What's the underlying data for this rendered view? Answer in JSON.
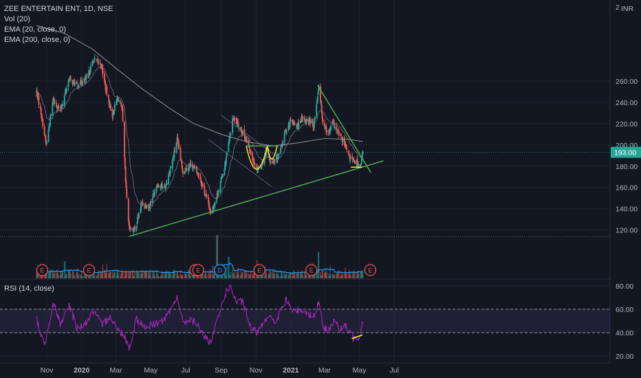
{
  "legend": {
    "symbol": "ZEE ENTERTAIN ENT, 1D, NSE",
    "vol": "Vol (20)",
    "ema20": "EMA (20, close, 0)",
    "ema200": "EMA (200, close, 0)",
    "rsi": "RSI (14, close)"
  },
  "currency": "INR",
  "top_tick_partial": "2",
  "price_tag": "193.00",
  "colors": {
    "background": "#131722",
    "up": "#26a69a",
    "down": "#ef5350",
    "trendline": "#4caf50",
    "pattern": "#ffeb3b",
    "ema": "#9e9e9e",
    "volume_ma": "#2196f3",
    "rsi": "#9c27b0",
    "rsi_band": "#7e57c2",
    "price_tag": "#26a69a"
  },
  "chart_data": {
    "type": "candlestick",
    "price_axis": {
      "range": [
        106,
        284
      ],
      "ticks": [
        120,
        140,
        160,
        180,
        200,
        220,
        240,
        260
      ]
    },
    "rsi_axis": {
      "range": [
        16,
        84
      ],
      "ticks": [
        20,
        40,
        60,
        80
      ],
      "tick_labels": [
        "20.00",
        "40.00",
        "60.00",
        "80.00"
      ],
      "band": [
        40,
        60
      ]
    },
    "time_axis": [
      "Nov",
      "2020",
      "Mar",
      "May",
      "Jul",
      "Sep",
      "Nov",
      "2021",
      "Mar",
      "May",
      "Jul"
    ],
    "time_axis_bold": [
      "2020",
      "2021"
    ],
    "last_price": 193.0,
    "low_price_line": 114,
    "price_path": [
      [
        "2019-10-14",
        250
      ],
      [
        "2019-10-22",
        230
      ],
      [
        "2019-10-31",
        200
      ],
      [
        "2019-11-12",
        242
      ],
      [
        "2019-11-25",
        232
      ],
      [
        "2019-12-10",
        262
      ],
      [
        "2019-12-24",
        256
      ],
      [
        "2020-01-10",
        262
      ],
      [
        "2020-01-22",
        280
      ],
      [
        "2020-02-04",
        276
      ],
      [
        "2020-02-14",
        248
      ],
      [
        "2020-02-24",
        228
      ],
      [
        "2020-03-04",
        245
      ],
      [
        "2020-03-12",
        232
      ],
      [
        "2020-03-18",
        165
      ],
      [
        "2020-03-24",
        122
      ],
      [
        "2020-04-03",
        120
      ],
      [
        "2020-04-15",
        145
      ],
      [
        "2020-04-28",
        142
      ],
      [
        "2020-05-12",
        163
      ],
      [
        "2020-05-26",
        160
      ],
      [
        "2020-06-08",
        185
      ],
      [
        "2020-06-16",
        205
      ],
      [
        "2020-06-26",
        175
      ],
      [
        "2020-07-10",
        182
      ],
      [
        "2020-07-24",
        172
      ],
      [
        "2020-08-10",
        145
      ],
      [
        "2020-08-14",
        135
      ],
      [
        "2020-08-28",
        158
      ],
      [
        "2020-09-08",
        182
      ],
      [
        "2020-09-22",
        225
      ],
      [
        "2020-10-02",
        218
      ],
      [
        "2020-10-15",
        205
      ],
      [
        "2020-10-24",
        190
      ],
      [
        "2020-11-02",
        178
      ],
      [
        "2020-11-10",
        180
      ],
      [
        "2020-11-20",
        196
      ],
      [
        "2020-11-27",
        183
      ],
      [
        "2020-12-04",
        183
      ],
      [
        "2020-12-14",
        195
      ],
      [
        "2020-12-22",
        212
      ],
      [
        "2021-01-01",
        222
      ],
      [
        "2021-01-12",
        218
      ],
      [
        "2021-01-22",
        224
      ],
      [
        "2021-02-03",
        222
      ],
      [
        "2021-02-10",
        218
      ],
      [
        "2021-02-19",
        256
      ],
      [
        "2021-02-26",
        222
      ],
      [
        "2021-03-08",
        210
      ],
      [
        "2021-03-15",
        222
      ],
      [
        "2021-03-22",
        213
      ],
      [
        "2021-04-01",
        205
      ],
      [
        "2021-04-12",
        190
      ],
      [
        "2021-04-22",
        184
      ],
      [
        "2021-05-03",
        181
      ],
      [
        "2021-05-07",
        193
      ]
    ],
    "ema200_path": [
      [
        "2019-10-14",
        312
      ],
      [
        "2019-12-01",
        305
      ],
      [
        "2020-01-20",
        290
      ],
      [
        "2020-03-01",
        272
      ],
      [
        "2020-04-15",
        253
      ],
      [
        "2020-06-01",
        235
      ],
      [
        "2020-07-15",
        220
      ],
      [
        "2020-09-01",
        210
      ],
      [
        "2020-10-15",
        203
      ],
      [
        "2020-12-01",
        199
      ],
      [
        "2021-01-15",
        202
      ],
      [
        "2021-03-01",
        206
      ],
      [
        "2021-04-15",
        205
      ],
      [
        "2021-05-07",
        203
      ]
    ],
    "rsi_path": [
      [
        "2019-10-14",
        52
      ],
      [
        "2019-10-28",
        28
      ],
      [
        "2019-11-12",
        66
      ],
      [
        "2019-11-26",
        46
      ],
      [
        "2019-12-10",
        64
      ],
      [
        "2019-12-24",
        44
      ],
      [
        "2020-01-08",
        48
      ],
      [
        "2020-01-22",
        58
      ],
      [
        "2020-02-06",
        46
      ],
      [
        "2020-02-20",
        55
      ],
      [
        "2020-03-04",
        42
      ],
      [
        "2020-03-16",
        38
      ],
      [
        "2020-03-24",
        26
      ],
      [
        "2020-04-06",
        52
      ],
      [
        "2020-04-22",
        44
      ],
      [
        "2020-05-08",
        48
      ],
      [
        "2020-05-22",
        50
      ],
      [
        "2020-06-05",
        58
      ],
      [
        "2020-06-16",
        72
      ],
      [
        "2020-06-26",
        48
      ],
      [
        "2020-07-10",
        52
      ],
      [
        "2020-07-24",
        45
      ],
      [
        "2020-08-07",
        34
      ],
      [
        "2020-08-14",
        30
      ],
      [
        "2020-08-28",
        55
      ],
      [
        "2020-09-07",
        72
      ],
      [
        "2020-09-16",
        80
      ],
      [
        "2020-09-28",
        66
      ],
      [
        "2020-10-09",
        66
      ],
      [
        "2020-10-22",
        45
      ],
      [
        "2020-11-02",
        40
      ],
      [
        "2020-11-12",
        48
      ],
      [
        "2020-11-22",
        55
      ],
      [
        "2020-12-04",
        48
      ],
      [
        "2020-12-16",
        60
      ],
      [
        "2020-12-24",
        68
      ],
      [
        "2021-01-06",
        58
      ],
      [
        "2021-01-18",
        60
      ],
      [
        "2021-02-02",
        56
      ],
      [
        "2021-02-12",
        54
      ],
      [
        "2021-02-19",
        68
      ],
      [
        "2021-02-26",
        44
      ],
      [
        "2021-03-08",
        42
      ],
      [
        "2021-03-18",
        52
      ],
      [
        "2021-03-26",
        43
      ],
      [
        "2021-04-08",
        45
      ],
      [
        "2021-04-20",
        36
      ],
      [
        "2021-05-01",
        37
      ],
      [
        "2021-05-07",
        50
      ]
    ],
    "trendlines": [
      {
        "kind": "support",
        "from": [
          "2020-03-24",
          114
        ],
        "to": [
          "2021-06-12",
          185
        ]
      },
      {
        "kind": "resistance",
        "from": [
          "2021-02-17",
          256
        ],
        "to": [
          "2021-05-21",
          174
        ]
      },
      {
        "kind": "neckline",
        "from": [
          "2020-10-15",
          199
        ],
        "to": [
          "2020-12-10",
          199
        ]
      },
      {
        "kind": "channel",
        "from": [
          "2020-09-01",
          228
        ],
        "to": [
          "2020-12-10",
          188
        ]
      },
      {
        "kind": "channel",
        "from": [
          "2020-08-10",
          205
        ],
        "to": [
          "2020-11-28",
          161
        ]
      }
    ],
    "pattern_lines": [
      {
        "kind": "cup",
        "points": [
          [
            "2020-10-15",
            199
          ],
          [
            "2020-11-02",
            176
          ],
          [
            "2020-11-21",
            199
          ]
        ]
      },
      {
        "kind": "cup",
        "points": [
          [
            "2020-11-21",
            199
          ],
          [
            "2020-11-28",
            186
          ],
          [
            "2020-12-08",
            199
          ]
        ]
      },
      {
        "kind": "base",
        "points": [
          [
            "2021-04-16",
            179
          ],
          [
            "2021-05-05",
            179
          ]
        ]
      },
      {
        "kind": "rsi_divergence",
        "points": [
          [
            "2021-04-18",
            35
          ],
          [
            "2021-05-06",
            38
          ]
        ]
      }
    ],
    "events": [
      {
        "label": "E",
        "date": "2019-10-24",
        "color": "#ef5350"
      },
      {
        "label": "E",
        "date": "2020-01-14",
        "color": "#ef5350"
      },
      {
        "label": "E",
        "date": "2020-07-18",
        "color": "#ef5350"
      },
      {
        "label": "E",
        "date": "2020-07-23",
        "color": "#ef5350"
      },
      {
        "label": "D",
        "date": "2020-08-30",
        "color": "#2196f3"
      },
      {
        "label": "E",
        "date": "2020-11-07",
        "color": "#ef5350"
      },
      {
        "label": "E",
        "date": "2021-02-06",
        "color": "#ef5350"
      },
      {
        "label": "E",
        "date": "2021-05-20",
        "color": "#ef5350"
      }
    ],
    "volume": {
      "baseline_level": "low",
      "spikes": [
        [
          "2019-12-02",
          0.35
        ],
        [
          "2020-08-25",
          0.9
        ],
        [
          "2020-09-14",
          0.45
        ],
        [
          "2021-02-19",
          0.55
        ]
      ]
    }
  }
}
